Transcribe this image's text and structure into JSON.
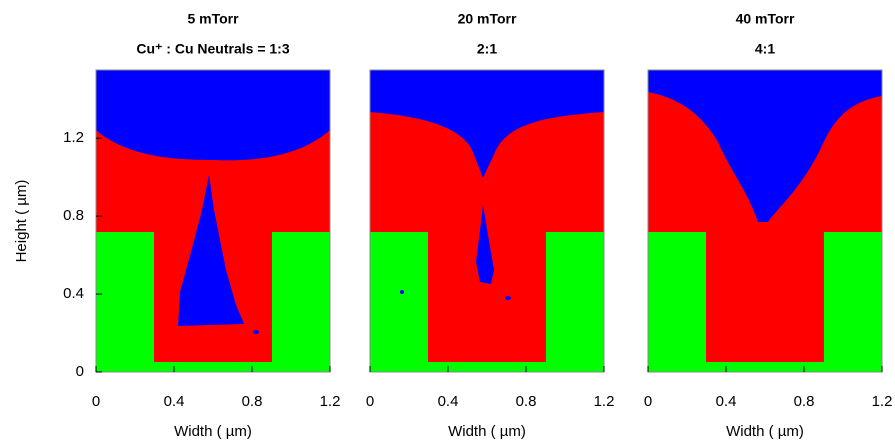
{
  "chart_data": [
    {
      "type": "profile",
      "title": "5 mTorr",
      "subtitle": "Cu⁺ : Cu Neutrals = 1:3",
      "x_label": "Width ( µm)",
      "y_label": "Height ( µm)",
      "xlim": [
        0,
        1.2
      ],
      "ylim": [
        0,
        1.55
      ],
      "xticks": [
        0,
        0.4,
        0.8,
        1.2
      ],
      "yticks": [
        0,
        0.4,
        0.8,
        1.2
      ]
    },
    {
      "type": "profile",
      "title": "20  mTorr",
      "subtitle": "2:1",
      "x_label": "Width ( µm)",
      "xlim": [
        0,
        1.2
      ],
      "ylim": [
        0,
        1.55
      ],
      "xticks": [
        0,
        0.4,
        0.8,
        1.2
      ]
    },
    {
      "type": "profile",
      "title": "40  mTorr",
      "subtitle": "4:1",
      "x_label": "Width ( µm)",
      "xlim": [
        0,
        1.2
      ],
      "ylim": [
        0,
        1.55
      ],
      "xticks": [
        0,
        0.4,
        0.8,
        1.2
      ]
    }
  ]
}
